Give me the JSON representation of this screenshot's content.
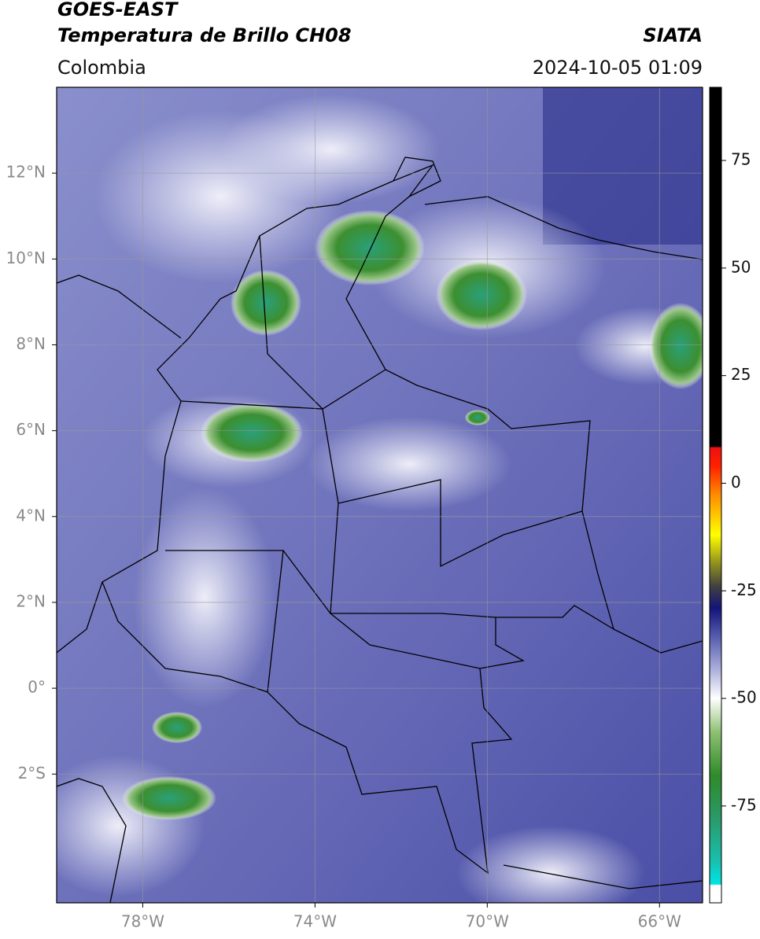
{
  "header": {
    "title": "GOES-EAST",
    "subtitle": "Temperatura de Brillo CH08",
    "source": "SIATA",
    "region": "Colombia",
    "datetime": "2024-10-05 01:09"
  },
  "map": {
    "xlim": [
      -80,
      -65
    ],
    "ylim": [
      -5,
      14
    ],
    "grid": true,
    "xticks": [
      {
        "value": -78,
        "label": "78°W"
      },
      {
        "value": -74,
        "label": "74°W"
      },
      {
        "value": -70,
        "label": "70°W"
      },
      {
        "value": -66,
        "label": "66°W"
      }
    ],
    "yticks": [
      {
        "value": 12,
        "label": "12°N"
      },
      {
        "value": 10,
        "label": "10°N"
      },
      {
        "value": 8,
        "label": "8°N"
      },
      {
        "value": 6,
        "label": "6°N"
      },
      {
        "value": 4,
        "label": "4°N"
      },
      {
        "value": 2,
        "label": "2°N"
      },
      {
        "value": 0,
        "label": "0°"
      },
      {
        "value": -2,
        "label": "2°S"
      }
    ]
  },
  "colorbar": {
    "lim": [
      -97.5,
      92
    ],
    "ticks": [
      75,
      50,
      25,
      0,
      -25,
      -50,
      -75
    ],
    "colormap": [
      {
        "value": -97.5,
        "color": "#ffffff"
      },
      {
        "value": -93.4,
        "color": "#ffffff"
      },
      {
        "value": -93.2,
        "color": "#00e5e5"
      },
      {
        "value": -88,
        "color": "#18c0b0"
      },
      {
        "value": -78,
        "color": "#2a9a6a"
      },
      {
        "value": -68,
        "color": "#2f8a2a"
      },
      {
        "value": -58,
        "color": "#8cbf70"
      },
      {
        "value": -50,
        "color": "#ffffff"
      },
      {
        "value": -44,
        "color": "#b4b8e0"
      },
      {
        "value": -36,
        "color": "#5a60b0"
      },
      {
        "value": -29,
        "color": "#14147a"
      },
      {
        "value": -24,
        "color": "#404040"
      },
      {
        "value": -19,
        "color": "#8a8a20"
      },
      {
        "value": -12,
        "color": "#ffff00"
      },
      {
        "value": -3,
        "color": "#ff9000"
      },
      {
        "value": 4,
        "color": "#ff2000"
      },
      {
        "value": 8.3,
        "color": "#ee1010"
      },
      {
        "value": 8.5,
        "color": "#000000"
      },
      {
        "value": 92,
        "color": "#000000"
      }
    ]
  }
}
